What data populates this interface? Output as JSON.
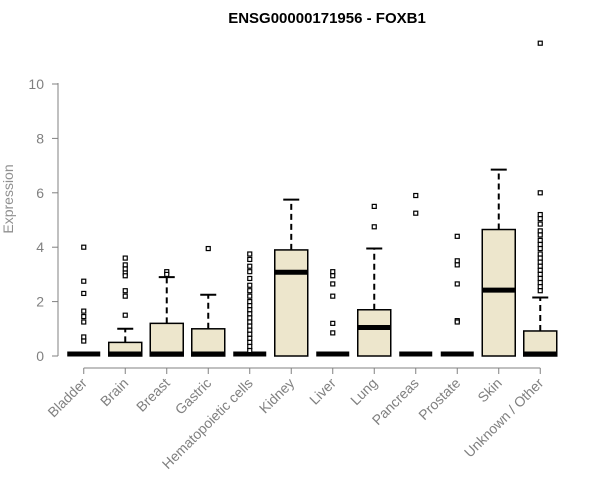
{
  "chart_data": {
    "type": "boxplot",
    "title": "ENSG00000171956 - FOXB1",
    "xlabel": "",
    "ylabel": "Expression",
    "ylim": [
      0,
      11.5
    ],
    "yticks": [
      0,
      2,
      4,
      6,
      8,
      10
    ],
    "grid": false,
    "legend": "none",
    "box_fill": "#ede6cc",
    "box_stroke": "#000000",
    "axis_color": "#808080",
    "categories": [
      "Bladder",
      "Brain",
      "Breast",
      "Gastric",
      "Hematopoietic cells",
      "Kidney",
      "Liver",
      "Lung",
      "Pancreas",
      "Prostate",
      "Skin",
      "Unknown / Other"
    ],
    "boxes": [
      {
        "q1": 0,
        "median": 0,
        "q3": 0,
        "whisker_low": 0,
        "whisker_high": 0,
        "outliers": [
          4.0,
          2.75,
          2.3,
          1.65,
          1.45,
          1.25,
          0.7,
          0.55
        ]
      },
      {
        "q1": 0,
        "median": 0.02,
        "q3": 0.5,
        "whisker_low": 0,
        "whisker_high": 1.0,
        "outliers": [
          3.6,
          3.35,
          3.2,
          3.05,
          2.95,
          2.4,
          2.2,
          1.5
        ]
      },
      {
        "q1": 0,
        "median": 0.02,
        "q3": 1.2,
        "whisker_low": 0,
        "whisker_high": 2.9,
        "outliers": [
          3.1,
          3.0
        ]
      },
      {
        "q1": 0,
        "median": 0,
        "q3": 1.0,
        "whisker_low": 0,
        "whisker_high": 2.25,
        "outliers": [
          3.95
        ]
      },
      {
        "q1": 0,
        "median": 0,
        "q3": 0,
        "whisker_low": 0,
        "whisker_high": 0,
        "outliers": [
          3.75,
          3.55,
          3.3,
          3.1,
          2.85,
          2.6,
          2.4,
          2.2,
          2.0,
          1.85,
          1.7,
          1.55,
          1.4,
          1.25,
          1.1,
          0.95,
          0.8,
          0.65,
          0.5,
          0.35,
          0.2
        ]
      },
      {
        "q1": 0,
        "median": 3.08,
        "q3": 3.9,
        "whisker_low": 0,
        "whisker_high": 5.75,
        "outliers": []
      },
      {
        "q1": 0,
        "median": 0,
        "q3": 0,
        "whisker_low": 0,
        "whisker_high": 0,
        "outliers": [
          3.1,
          2.95,
          2.65,
          2.2,
          1.2,
          0.85
        ]
      },
      {
        "q1": 0,
        "median": 1.05,
        "q3": 1.7,
        "whisker_low": 0,
        "whisker_high": 3.95,
        "outliers": [
          5.5,
          4.75
        ]
      },
      {
        "q1": 0,
        "median": 0,
        "q3": 0,
        "whisker_low": 0,
        "whisker_high": 0,
        "outliers": [
          5.9,
          5.25
        ]
      },
      {
        "q1": 0,
        "median": 0,
        "q3": 0,
        "whisker_low": 0,
        "whisker_high": 0,
        "outliers": [
          4.4,
          3.5,
          3.35,
          2.65,
          1.3,
          1.25
        ]
      },
      {
        "q1": 0,
        "median": 2.42,
        "q3": 4.65,
        "whisker_low": 0,
        "whisker_high": 6.85,
        "outliers": []
      },
      {
        "q1": 0,
        "median": 0.02,
        "q3": 0.92,
        "whisker_low": 0,
        "whisker_high": 2.15,
        "outliers": [
          11.5,
          6.0,
          5.2,
          5.05,
          4.85,
          4.6,
          4.45,
          4.25,
          4.1,
          3.95,
          3.75,
          3.6,
          3.45,
          3.3,
          3.15,
          3.0,
          2.85,
          2.7,
          2.55,
          2.4
        ]
      }
    ]
  }
}
